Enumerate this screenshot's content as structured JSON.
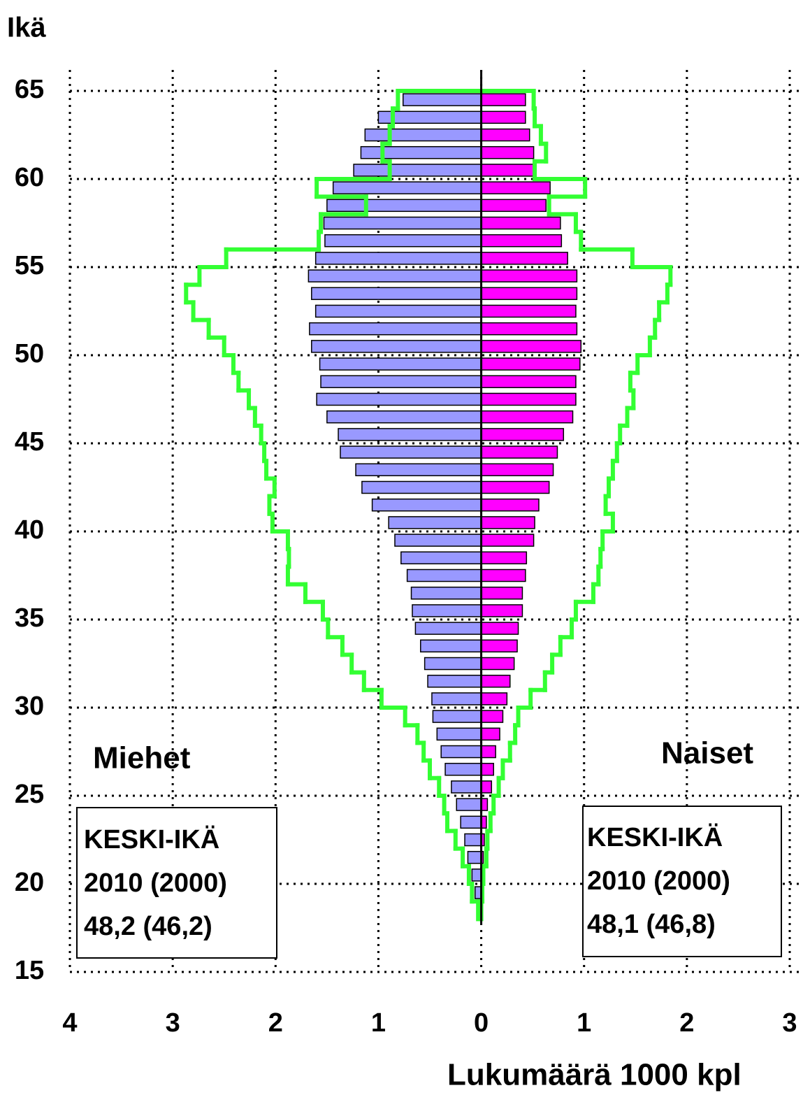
{
  "chart_data": {
    "type": "pyramid",
    "y_label": "Ikä",
    "x_label": "Lukumäärä 1000 kpl",
    "left_label": "Miehet",
    "right_label": "Naiset",
    "annotations": {
      "left": [
        "KESKI-IKÄ",
        "2010 (2000)",
        "48,2 (46,2)"
      ],
      "right": [
        "KESKI-IKÄ",
        "2010 (2000)",
        "48,1 (46,8)"
      ]
    },
    "ages": [
      64,
      63,
      62,
      61,
      60,
      59,
      58,
      57,
      56,
      55,
      54,
      53,
      52,
      51,
      50,
      49,
      48,
      47,
      46,
      45,
      44,
      43,
      42,
      41,
      40,
      39,
      38,
      37,
      36,
      35,
      34,
      33,
      32,
      31,
      30,
      29,
      28,
      27,
      26,
      25,
      24,
      23,
      22,
      21,
      20,
      19,
      18
    ],
    "series": [
      {
        "side": "left",
        "style": "bar",
        "color": "#9999ff",
        "values": [
          0.76,
          1.0,
          1.13,
          1.17,
          1.24,
          1.44,
          1.5,
          1.53,
          1.52,
          1.61,
          1.68,
          1.65,
          1.61,
          1.67,
          1.65,
          1.57,
          1.56,
          1.6,
          1.5,
          1.39,
          1.37,
          1.22,
          1.16,
          1.06,
          0.9,
          0.84,
          0.78,
          0.72,
          0.68,
          0.67,
          0.64,
          0.59,
          0.55,
          0.52,
          0.48,
          0.47,
          0.43,
          0.39,
          0.35,
          0.29,
          0.24,
          0.2,
          0.16,
          0.13,
          0.09,
          0.06,
          null
        ]
      },
      {
        "side": "right",
        "style": "bar",
        "color": "#ff00ff",
        "values": [
          0.43,
          0.43,
          0.47,
          0.51,
          0.51,
          0.67,
          0.63,
          0.77,
          0.78,
          0.84,
          0.93,
          0.93,
          0.92,
          0.93,
          0.97,
          0.96,
          0.92,
          0.92,
          0.89,
          0.8,
          0.74,
          0.7,
          0.66,
          0.56,
          0.52,
          0.51,
          0.44,
          0.43,
          0.4,
          0.4,
          0.36,
          0.35,
          0.32,
          0.28,
          0.25,
          0.21,
          0.18,
          0.14,
          0.12,
          0.1,
          0.06,
          0.05,
          0.03,
          0.02,
          0.01,
          0.01,
          null
        ]
      },
      {
        "side": "left",
        "style": "step",
        "color": "#33ff33",
        "values": [
          0.81,
          0.86,
          0.89,
          0.96,
          0.89,
          1.6,
          1.12,
          1.56,
          1.58,
          2.48,
          2.74,
          2.87,
          2.8,
          2.65,
          2.5,
          2.41,
          2.36,
          2.26,
          2.2,
          2.14,
          2.11,
          2.09,
          2.01,
          2.06,
          2.03,
          1.88,
          1.87,
          1.88,
          1.71,
          1.54,
          1.49,
          1.35,
          1.26,
          1.14,
          0.97,
          0.74,
          0.62,
          0.56,
          0.5,
          0.41,
          0.36,
          0.33,
          0.25,
          0.18,
          0.12,
          0.09,
          0.03
        ]
      },
      {
        "side": "right",
        "style": "step",
        "color": "#33ff33",
        "values": [
          0.51,
          0.52,
          0.58,
          0.63,
          0.52,
          1.01,
          0.66,
          0.92,
          0.97,
          1.47,
          1.84,
          1.81,
          1.73,
          1.69,
          1.64,
          1.52,
          1.45,
          1.48,
          1.42,
          1.35,
          1.32,
          1.28,
          1.24,
          1.21,
          1.28,
          1.18,
          1.16,
          1.14,
          1.09,
          0.92,
          0.88,
          0.77,
          0.69,
          0.62,
          0.48,
          0.36,
          0.33,
          0.28,
          0.21,
          0.17,
          0.12,
          0.09,
          0.06,
          0.05,
          0.02,
          0.01,
          0
        ]
      }
    ],
    "xlim": [
      -4,
      3
    ],
    "xticks": [
      {
        "value": -4,
        "label": "4"
      },
      {
        "value": -3,
        "label": "3"
      },
      {
        "value": -2,
        "label": "2"
      },
      {
        "value": -1,
        "label": "1"
      },
      0,
      1,
      2,
      3
    ],
    "ylim": [
      15,
      65
    ],
    "yticks": [
      15,
      20,
      25,
      30,
      35,
      40,
      45,
      50,
      55,
      60,
      65
    ],
    "grid": true
  }
}
